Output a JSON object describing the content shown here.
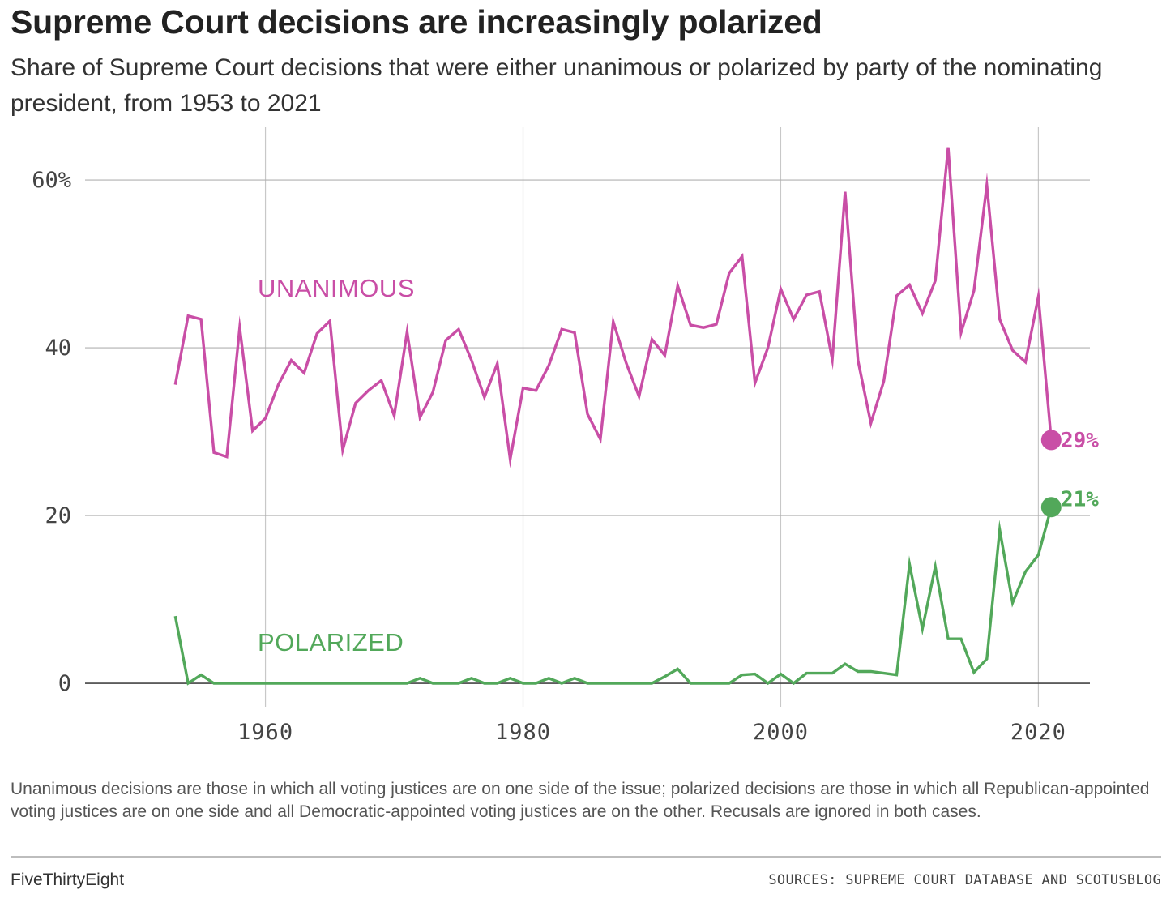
{
  "title": "Supreme Court decisions are increasingly polarized",
  "subtitle": "Share of Supreme Court decisions that were either unanimous or polarized by party of the nominating president, from 1953 to 2021",
  "note": "Unanimous decisions are those in which all voting justices are on one side of the issue; polarized decisions are those in which all Republican-appointed voting justices are on one side and all Democratic-appointed voting justices are on the other. Recusals are ignored in both cases.",
  "brand": "FiveThirtyEight",
  "source": "SOURCES: SUPREME COURT DATABASE AND SCOTUSBLOG",
  "chart_data": {
    "type": "line",
    "xlim": [
      1946,
      2024
    ],
    "ylim": [
      -2.8,
      66
    ],
    "x_ticks": [
      1960,
      1980,
      2000,
      2020
    ],
    "x_tick_labels": [
      "1960",
      "1980",
      "2000",
      "2020"
    ],
    "y_ticks": [
      0,
      20,
      40,
      60
    ],
    "y_tick_labels": [
      "0",
      "20",
      "40",
      "60%"
    ],
    "grid": true,
    "x": [
      1953,
      1954,
      1955,
      1956,
      1957,
      1958,
      1959,
      1960,
      1961,
      1962,
      1963,
      1964,
      1965,
      1966,
      1967,
      1968,
      1969,
      1970,
      1971,
      1972,
      1973,
      1974,
      1975,
      1976,
      1977,
      1978,
      1979,
      1980,
      1981,
      1982,
      1983,
      1984,
      1985,
      1986,
      1987,
      1988,
      1989,
      1990,
      1991,
      1992,
      1993,
      1994,
      1995,
      1996,
      1997,
      1998,
      1999,
      2000,
      2001,
      2002,
      2003,
      2004,
      2005,
      2006,
      2007,
      2008,
      2009,
      2010,
      2011,
      2012,
      2013,
      2014,
      2015,
      2016,
      2017,
      2018,
      2019,
      2020,
      2021
    ],
    "series": [
      {
        "name": "UNANIMOUS",
        "color": "#c94ea6",
        "values": [
          35.6,
          43.8,
          43.4,
          27.5,
          27.0,
          42.4,
          30.1,
          31.6,
          35.6,
          38.5,
          37.0,
          41.7,
          43.2,
          27.8,
          33.4,
          34.9,
          36.1,
          31.9,
          41.9,
          31.7,
          34.7,
          40.9,
          42.2,
          38.5,
          34.1,
          38.1,
          26.7,
          35.2,
          34.9,
          37.9,
          42.2,
          41.8,
          32.1,
          29.1,
          43.1,
          38.2,
          34.2,
          41.0,
          39.1,
          47.4,
          42.7,
          42.4,
          42.8,
          48.9,
          50.9,
          35.8,
          40.0,
          47.0,
          43.4,
          46.3,
          46.7,
          38.6,
          58.6,
          38.5,
          31.0,
          36.0,
          46.2,
          47.5,
          44.1,
          48.0,
          63.9,
          41.8,
          46.8,
          59.4,
          43.4,
          39.7,
          38.3,
          46.1,
          29.0
        ]
      },
      {
        "name": "POLARIZED",
        "color": "#52a85a",
        "values": [
          8.0,
          0.0,
          1.0,
          0.0,
          0.0,
          0.0,
          0.0,
          0.0,
          0.0,
          0.0,
          0.0,
          0.0,
          0.0,
          0.0,
          0.0,
          0.0,
          0.0,
          0.0,
          0.0,
          0.6,
          0.0,
          0.0,
          0.0,
          0.6,
          0.0,
          0.0,
          0.6,
          0.0,
          0.0,
          0.6,
          0.0,
          0.6,
          0.0,
          0.0,
          0.0,
          0.0,
          0.0,
          0.0,
          0.8,
          1.7,
          0.0,
          0.0,
          0.0,
          0.0,
          1.0,
          1.1,
          0.0,
          1.1,
          0.0,
          1.2,
          1.2,
          1.2,
          2.3,
          1.4,
          1.4,
          1.2,
          1.0,
          14.2,
          6.5,
          13.9,
          5.3,
          5.3,
          1.3,
          2.9,
          18.3,
          9.6,
          13.3,
          15.3,
          21.0
        ]
      }
    ],
    "annotations": [
      {
        "text": "UNANIMOUS",
        "color": "#c94ea6"
      },
      {
        "text": "POLARIZED",
        "color": "#52a85a"
      },
      {
        "text": "29%",
        "color": "#c94ea6"
      },
      {
        "text": "21%",
        "color": "#52a85a"
      }
    ]
  }
}
